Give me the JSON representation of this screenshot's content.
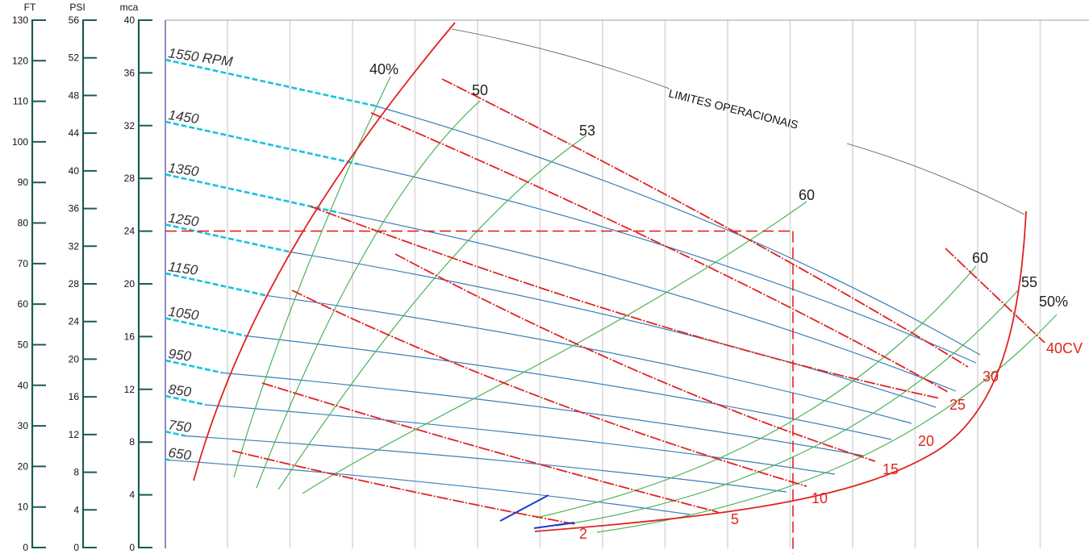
{
  "chart_data": {
    "type": "line",
    "title": "",
    "axes": {
      "ft": {
        "title": "FT",
        "ticks": [
          0,
          10,
          20,
          30,
          40,
          50,
          60,
          70,
          80,
          90,
          100,
          110,
          120,
          130
        ]
      },
      "psi": {
        "title": "PSI",
        "ticks": [
          0,
          4,
          8,
          12,
          16,
          20,
          24,
          28,
          32,
          36,
          40,
          44,
          48,
          52,
          56
        ]
      },
      "mca": {
        "title": "mca",
        "ticks": [
          0,
          4,
          8,
          12,
          16,
          20,
          24,
          28,
          32,
          36,
          40
        ]
      }
    },
    "ylim": [
      0,
      40
    ],
    "x_scale": "unlabeled",
    "grid": true,
    "rpm_curves": [
      {
        "label": "1550 RPM",
        "start_head": 37.0
      },
      {
        "label": "1450",
        "start_head": 32.3
      },
      {
        "label": "1350",
        "start_head": 28.3
      },
      {
        "label": "1250",
        "start_head": 24.5
      },
      {
        "label": "1150",
        "start_head": 20.8
      },
      {
        "label": "1050",
        "start_head": 17.4
      },
      {
        "label": "950",
        "start_head": 14.2
      },
      {
        "label": "850",
        "start_head": 11.5
      },
      {
        "label": "750",
        "start_head": 8.8
      },
      {
        "label": "650",
        "start_head": 6.7
      }
    ],
    "efficiency_curves": [
      {
        "label": "40%"
      },
      {
        "label": "50"
      },
      {
        "label": "53"
      },
      {
        "label": "60"
      },
      {
        "label": "60"
      },
      {
        "label": "55"
      },
      {
        "label": "50%"
      }
    ],
    "power_curves": [
      {
        "label": "2"
      },
      {
        "label": "5"
      },
      {
        "label": "10"
      },
      {
        "label": "15"
      },
      {
        "label": "20"
      },
      {
        "label": "25"
      },
      {
        "label": "30"
      },
      {
        "label": "40CV"
      }
    ],
    "annotations": {
      "operating_limits": "LIMITES OPERACIONAIS",
      "operating_point_head": 24
    },
    "colors": {
      "rpm_curve": "#3a7fb8",
      "rpm_dash": "#19c3dc",
      "efficiency_curve": "#4cb35a",
      "power_curve": "#e0231f",
      "axis": "#1c5a55",
      "grid": "#d9d9d9",
      "limit_boundary": "#e0231f"
    }
  }
}
